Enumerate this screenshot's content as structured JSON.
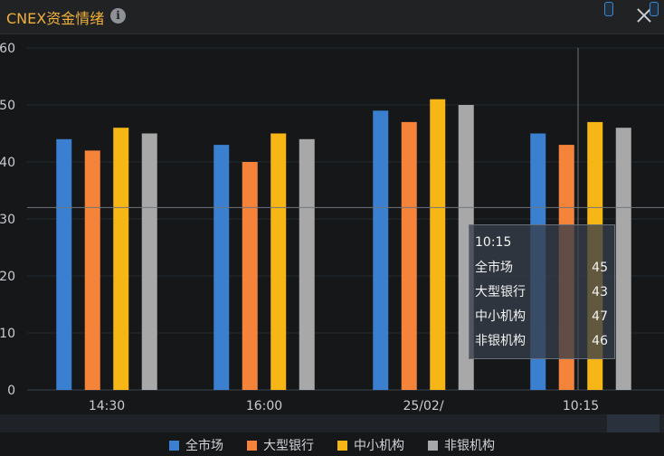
{
  "header": {
    "title": "CNEX资金情绪",
    "info_icon": "info-icon",
    "close_icon": "close-icon"
  },
  "tooltip": {
    "time": "10:15",
    "rows": [
      {
        "name": "全市场",
        "value": "45"
      },
      {
        "name": "大型银行",
        "value": "43"
      },
      {
        "name": "中小机构",
        "value": "47"
      },
      {
        "name": "非银机构",
        "value": "46"
      }
    ]
  },
  "legend": [
    {
      "name": "全市场",
      "color": "#3b7fd0"
    },
    {
      "name": "大型银行",
      "color": "#f5843a"
    },
    {
      "name": "中小机构",
      "color": "#f6b716"
    },
    {
      "name": "非银机构",
      "color": "#a8a8a8"
    }
  ],
  "chart_data": {
    "type": "bar",
    "categories": [
      "14:30",
      "16:00",
      "25/02/",
      "10:15"
    ],
    "ylim": [
      0,
      60
    ],
    "yticks": [
      0,
      10,
      20,
      30,
      40,
      50,
      60
    ],
    "crosshair_y": 32,
    "crosshair_x_category": "10:15",
    "grid": true,
    "legend_position": "bottom",
    "series": [
      {
        "name": "全市场",
        "color": "#3b7fd0",
        "values": [
          44,
          43,
          49,
          45
        ]
      },
      {
        "name": "大型银行",
        "color": "#f5843a",
        "values": [
          42,
          40,
          47,
          43
        ]
      },
      {
        "name": "中小机构",
        "color": "#f6b716",
        "values": [
          46,
          45,
          51,
          47
        ]
      },
      {
        "name": "非银机构",
        "color": "#a8a8a8",
        "values": [
          45,
          44,
          50,
          46
        ]
      }
    ]
  }
}
